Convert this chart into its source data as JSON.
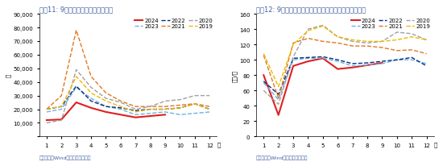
{
  "chart1": {
    "title": "图表11: 9月挖掘机销售环比延续改善",
    "ylabel": "台",
    "xlabel_suffix": "月",
    "ylim": [
      0,
      90000
    ],
    "yticks": [
      0,
      10000,
      20000,
      30000,
      40000,
      50000,
      60000,
      70000,
      80000,
      90000
    ],
    "source": "资料来源：Wind，国盛证券研究所",
    "series": {
      "2024": {
        "color": "#e02020",
        "style": "solid",
        "data": [
          12000,
          12500,
          25000,
          21000,
          18000,
          16000,
          14000,
          15000,
          16000,
          null,
          null,
          null
        ]
      },
      "2023": {
        "color": "#70b0e0",
        "style": "dashed",
        "data": [
          18000,
          20000,
          36000,
          28000,
          22000,
          20000,
          16000,
          17000,
          18000,
          16000,
          17000,
          18000
        ]
      },
      "2022": {
        "color": "#003080",
        "style": "dashed",
        "data": [
          20000,
          22000,
          37000,
          26000,
          22000,
          21000,
          19000,
          20000,
          20000,
          21000,
          24000,
          20000
        ]
      },
      "2021": {
        "color": "#e07820",
        "style": "dashed",
        "data": [
          20000,
          30000,
          78000,
          44000,
          32000,
          26000,
          22000,
          22000,
          22000,
          23000,
          24000,
          22000
        ]
      },
      "2020": {
        "color": "#a0a0a0",
        "style": "dashed",
        "data": [
          10000,
          12000,
          49000,
          36000,
          28000,
          25000,
          20000,
          22000,
          26000,
          27000,
          30000,
          30000
        ]
      },
      "2019": {
        "color": "#f0b800",
        "style": "dashed",
        "data": [
          20000,
          22000,
          44000,
          32000,
          26000,
          22000,
          18000,
          20000,
          20000,
          21000,
          24000,
          20000
        ]
      }
    }
  },
  "chart2": {
    "title": "图表12: 9月挖掘机开工小时数同样有所回升，但仍在低位",
    "ylabel": "小时/月",
    "xlabel_suffix": "月",
    "ylim": [
      0,
      160
    ],
    "yticks": [
      0,
      20,
      40,
      60,
      80,
      100,
      120,
      140,
      160
    ],
    "source": "资料来源：Wind，国盛证券研究所",
    "series": {
      "2024": {
        "color": "#e02020",
        "style": "solid",
        "data": [
          80,
          28,
          92,
          98,
          102,
          88,
          90,
          93,
          96,
          null,
          null,
          null
        ]
      },
      "2023": {
        "color": "#70b0e0",
        "style": "dashed",
        "data": [
          70,
          48,
          100,
          102,
          102,
          98,
          92,
          93,
          95,
          100,
          100,
          95
        ]
      },
      "2022": {
        "color": "#003080",
        "style": "dashed",
        "data": [
          72,
          55,
          102,
          103,
          104,
          100,
          95,
          96,
          98,
          100,
          103,
          92
        ]
      },
      "2021": {
        "color": "#e07820",
        "style": "dashed",
        "data": [
          106,
          50,
          122,
          128,
          124,
          122,
          118,
          118,
          116,
          112,
          113,
          108
        ]
      },
      "2020": {
        "color": "#a0a0a0",
        "style": "dashed",
        "data": [
          60,
          42,
          104,
          140,
          145,
          130,
          124,
          122,
          124,
          136,
          134,
          126
        ]
      },
      "2019": {
        "color": "#f0b800",
        "style": "dashed",
        "data": [
          108,
          65,
          120,
          138,
          144,
          130,
          126,
          124,
          124,
          126,
          130,
          126
        ]
      }
    }
  },
  "title_fontsize": 6,
  "label_fontsize": 5,
  "tick_fontsize": 5,
  "legend_fontsize": 5,
  "source_fontsize": 4.5,
  "title_color": "#4060a0",
  "source_color": "#4060a0",
  "bg_color": "#ffffff",
  "header_color": "#dce6f1"
}
